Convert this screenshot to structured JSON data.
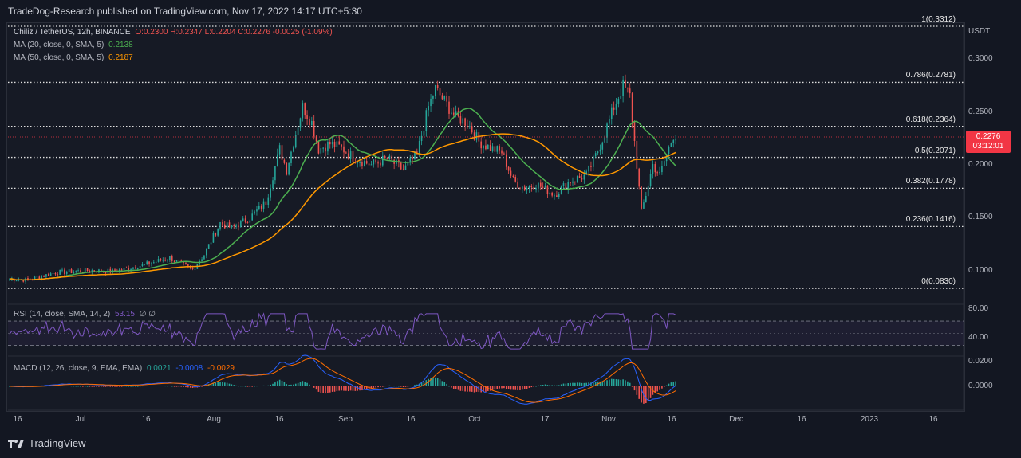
{
  "header": {
    "publisher": "TradeDog-Research published on TradingView.com, Nov 17, 2022 14:17 UTC+5:30"
  },
  "legend": {
    "symbol": "Chiliz / TetherUS, 12h, BINANCE",
    "ohlc": "O:0.2300 H:0.2347 L:0.2204 C:0.2276 -0.0025 (-1.09%)",
    "ma20_label": "MA (20, close, 0, SMA, 5)",
    "ma20_value": "0.2138",
    "ma50_label": "MA (50, close, 0, SMA, 5)",
    "ma50_value": "0.2187"
  },
  "rsi": {
    "label": "RSI (14, close, SMA, 14, 2)",
    "value": "53.15",
    "extra": "∅ ∅"
  },
  "macd": {
    "label": "MACD (12, 26, close, 9, EMA, EMA)",
    "hist": "0.0021",
    "macd": "-0.0008",
    "signal": "-0.0029"
  },
  "price_tag": {
    "value": "0.2276",
    "countdown": "03:12:01"
  },
  "footer": {
    "brand": "TradingView"
  },
  "colors": {
    "bull": "#26a69a",
    "bear": "#ef5350",
    "ma20": "#4caf50",
    "ma50": "#ff9800",
    "rsi": "#7e57c2",
    "macd": "#2962ff",
    "signal": "#ff6d00"
  },
  "chart_data": {
    "type": "candlestick",
    "currency": "USDT",
    "price_ticks": [
      "0.3000",
      "0.2500",
      "0.2000",
      "0.1500",
      "0.1000"
    ],
    "ylim": [
      0.077,
      0.335
    ],
    "x_ticks": [
      "16",
      "Jul",
      "16",
      "Aug",
      "16",
      "Sep",
      "16",
      "Oct",
      "17",
      "Nov",
      "16",
      "Dec",
      "16",
      "2023",
      "16"
    ],
    "fib_levels": [
      {
        "label": "1(0.3312)",
        "value": 0.3312
      },
      {
        "label": "0.786(0.2781)",
        "value": 0.2781
      },
      {
        "label": "0.618(0.2364)",
        "value": 0.2364
      },
      {
        "label": "0.5(0.2071)",
        "value": 0.2071
      },
      {
        "label": "0.382(0.1778)",
        "value": 0.1778
      },
      {
        "label": "0.236(0.1416)",
        "value": 0.1416
      },
      {
        "label": "0(0.0830)",
        "value": 0.083
      }
    ],
    "price_anchors": [
      [
        0,
        0.092
      ],
      [
        8,
        0.091
      ],
      [
        20,
        0.098
      ],
      [
        35,
        0.1
      ],
      [
        45,
        0.099
      ],
      [
        60,
        0.106
      ],
      [
        70,
        0.112
      ],
      [
        75,
        0.106
      ],
      [
        80,
        0.101
      ],
      [
        85,
        0.115
      ],
      [
        92,
        0.145
      ],
      [
        97,
        0.14
      ],
      [
        105,
        0.15
      ],
      [
        112,
        0.165
      ],
      [
        118,
        0.215
      ],
      [
        121,
        0.195
      ],
      [
        125,
        0.23
      ],
      [
        128,
        0.255
      ],
      [
        132,
        0.24
      ],
      [
        135,
        0.215
      ],
      [
        140,
        0.22
      ],
      [
        145,
        0.216
      ],
      [
        150,
        0.207
      ],
      [
        158,
        0.2
      ],
      [
        165,
        0.206
      ],
      [
        172,
        0.195
      ],
      [
        178,
        0.21
      ],
      [
        183,
        0.255
      ],
      [
        186,
        0.272
      ],
      [
        190,
        0.26
      ],
      [
        195,
        0.245
      ],
      [
        200,
        0.24
      ],
      [
        205,
        0.222
      ],
      [
        210,
        0.216
      ],
      [
        215,
        0.212
      ],
      [
        220,
        0.185
      ],
      [
        225,
        0.178
      ],
      [
        230,
        0.182
      ],
      [
        238,
        0.172
      ],
      [
        245,
        0.185
      ],
      [
        252,
        0.19
      ],
      [
        256,
        0.208
      ],
      [
        260,
        0.23
      ],
      [
        264,
        0.255
      ],
      [
        268,
        0.275
      ],
      [
        271,
        0.265
      ],
      [
        274,
        0.2
      ],
      [
        276,
        0.155
      ],
      [
        278,
        0.172
      ],
      [
        281,
        0.2
      ],
      [
        284,
        0.19
      ],
      [
        287,
        0.21
      ],
      [
        290,
        0.228
      ]
    ],
    "rsi": {
      "ticks": [
        "80.00",
        "40.00"
      ],
      "upper": 70,
      "lower": 30
    },
    "macd_ticks": [
      "0.0200",
      "0.0000"
    ]
  }
}
